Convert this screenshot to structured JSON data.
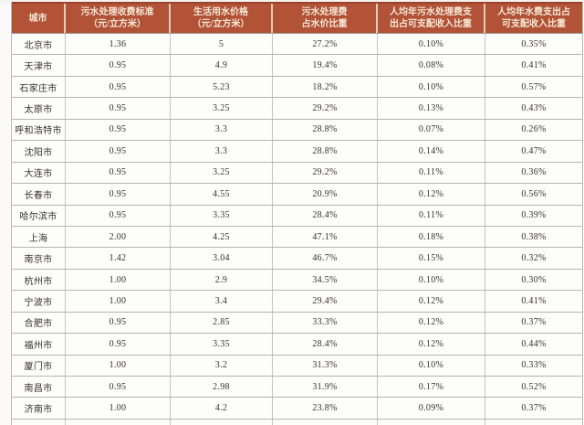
{
  "table": {
    "title_semantic": "city-water-fee-table",
    "columns": [
      "城市",
      "污水处理收费标准\n（元/立方米）",
      "生活用水价格\n（元/立方米）",
      "污水处理费\n占水价比重",
      "人均年污水处理费支\n出占可支配收入比重",
      "人均年水费支出占\n可支配收入比重"
    ],
    "rows": [
      [
        "北京市",
        "1.36",
        "5",
        "27.2%",
        "0.10%",
        "0.35%"
      ],
      [
        "天津市",
        "0.95",
        "4.9",
        "19.4%",
        "0.08%",
        "0.41%"
      ],
      [
        "石家庄市",
        "0.95",
        "5.23",
        "18.2%",
        "0.10%",
        "0.57%"
      ],
      [
        "太原市",
        "0.95",
        "3.25",
        "29.2%",
        "0.13%",
        "0.43%"
      ],
      [
        "呼和浩特市",
        "0.95",
        "3.3",
        "28.8%",
        "0.07%",
        "0.26%"
      ],
      [
        "沈阳市",
        "0.95",
        "3.3",
        "28.8%",
        "0.14%",
        "0.47%"
      ],
      [
        "大连市",
        "0.95",
        "3.25",
        "29.2%",
        "0.11%",
        "0.36%"
      ],
      [
        "长春市",
        "0.95",
        "4.55",
        "20.9%",
        "0.12%",
        "0.56%"
      ],
      [
        "哈尔滨市",
        "0.95",
        "3.35",
        "28.4%",
        "0.11%",
        "0.39%"
      ],
      [
        "上海",
        "2.00",
        "4.25",
        "47.1%",
        "0.18%",
        "0.38%"
      ],
      [
        "南京市",
        "1.42",
        "3.04",
        "46.7%",
        "0.15%",
        "0.32%"
      ],
      [
        "杭州市",
        "1.00",
        "2.9",
        "34.5%",
        "0.10%",
        "0.30%"
      ],
      [
        "宁波市",
        "1.00",
        "3.4",
        "29.4%",
        "0.12%",
        "0.41%"
      ],
      [
        "合肥市",
        "0.95",
        "2.85",
        "33.3%",
        "0.12%",
        "0.37%"
      ],
      [
        "福州市",
        "0.95",
        "3.35",
        "28.4%",
        "0.12%",
        "0.44%"
      ],
      [
        "厦门市",
        "1.00",
        "3.2",
        "31.3%",
        "0.10%",
        "0.33%"
      ],
      [
        "南昌市",
        "0.95",
        "2.98",
        "31.9%",
        "0.17%",
        "0.52%"
      ],
      [
        "济南市",
        "1.00",
        "4.2",
        "23.8%",
        "0.09%",
        "0.37%"
      ]
    ]
  },
  "colors": {
    "header_bg": "#b25338",
    "header_text": "#f6e8d5",
    "header_separator": "#e3cdb8",
    "grid_border": "#b4b4b4",
    "cell_bg": "#fdfdfb",
    "text": "#35322d"
  }
}
